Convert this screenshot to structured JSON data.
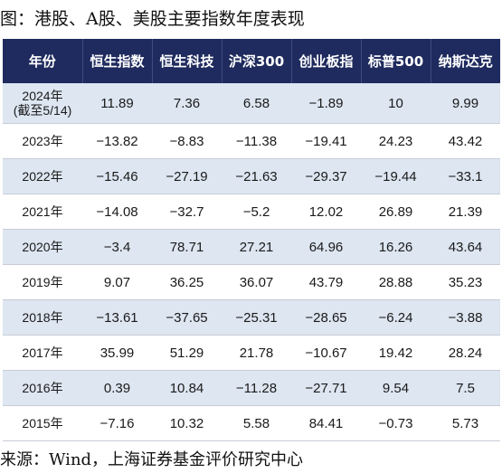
{
  "title": "图：港股、A股、美股主要指数年度表现",
  "source": "来源：Wind，上海证券基金评价研究中心",
  "table": {
    "headers": [
      "年份",
      "恒生指数",
      "恒生科技",
      "沪深300",
      "创业板指",
      "标普500",
      "纳斯达克"
    ],
    "rows": [
      [
        "2024年\n(截至5/14)",
        "11.89",
        "7.36",
        "6.58",
        "−1.89",
        "10",
        "9.99"
      ],
      [
        "2023年",
        "−13.82",
        "−8.83",
        "−11.38",
        "−19.41",
        "24.23",
        "43.42"
      ],
      [
        "2022年",
        "−15.46",
        "−27.19",
        "−21.63",
        "−29.37",
        "−19.44",
        "−33.1"
      ],
      [
        "2021年",
        "−14.08",
        "−32.7",
        "−5.2",
        "12.02",
        "26.89",
        "21.39"
      ],
      [
        "2020年",
        "−3.4",
        "78.71",
        "27.21",
        "64.96",
        "16.26",
        "43.64"
      ],
      [
        "2019年",
        "9.07",
        "36.25",
        "36.07",
        "43.79",
        "28.88",
        "35.23"
      ],
      [
        "2018年",
        "−13.61",
        "−37.65",
        "−25.31",
        "−28.65",
        "−6.24",
        "−3.88"
      ],
      [
        "2017年",
        "35.99",
        "51.29",
        "21.78",
        "−10.67",
        "19.42",
        "28.24"
      ],
      [
        "2016年",
        "0.39",
        "10.84",
        "−11.28",
        "−27.71",
        "9.54",
        "7.5"
      ],
      [
        "2015年",
        "−7.16",
        "10.32",
        "5.58",
        "84.41",
        "−0.73",
        "5.73"
      ]
    ]
  }
}
